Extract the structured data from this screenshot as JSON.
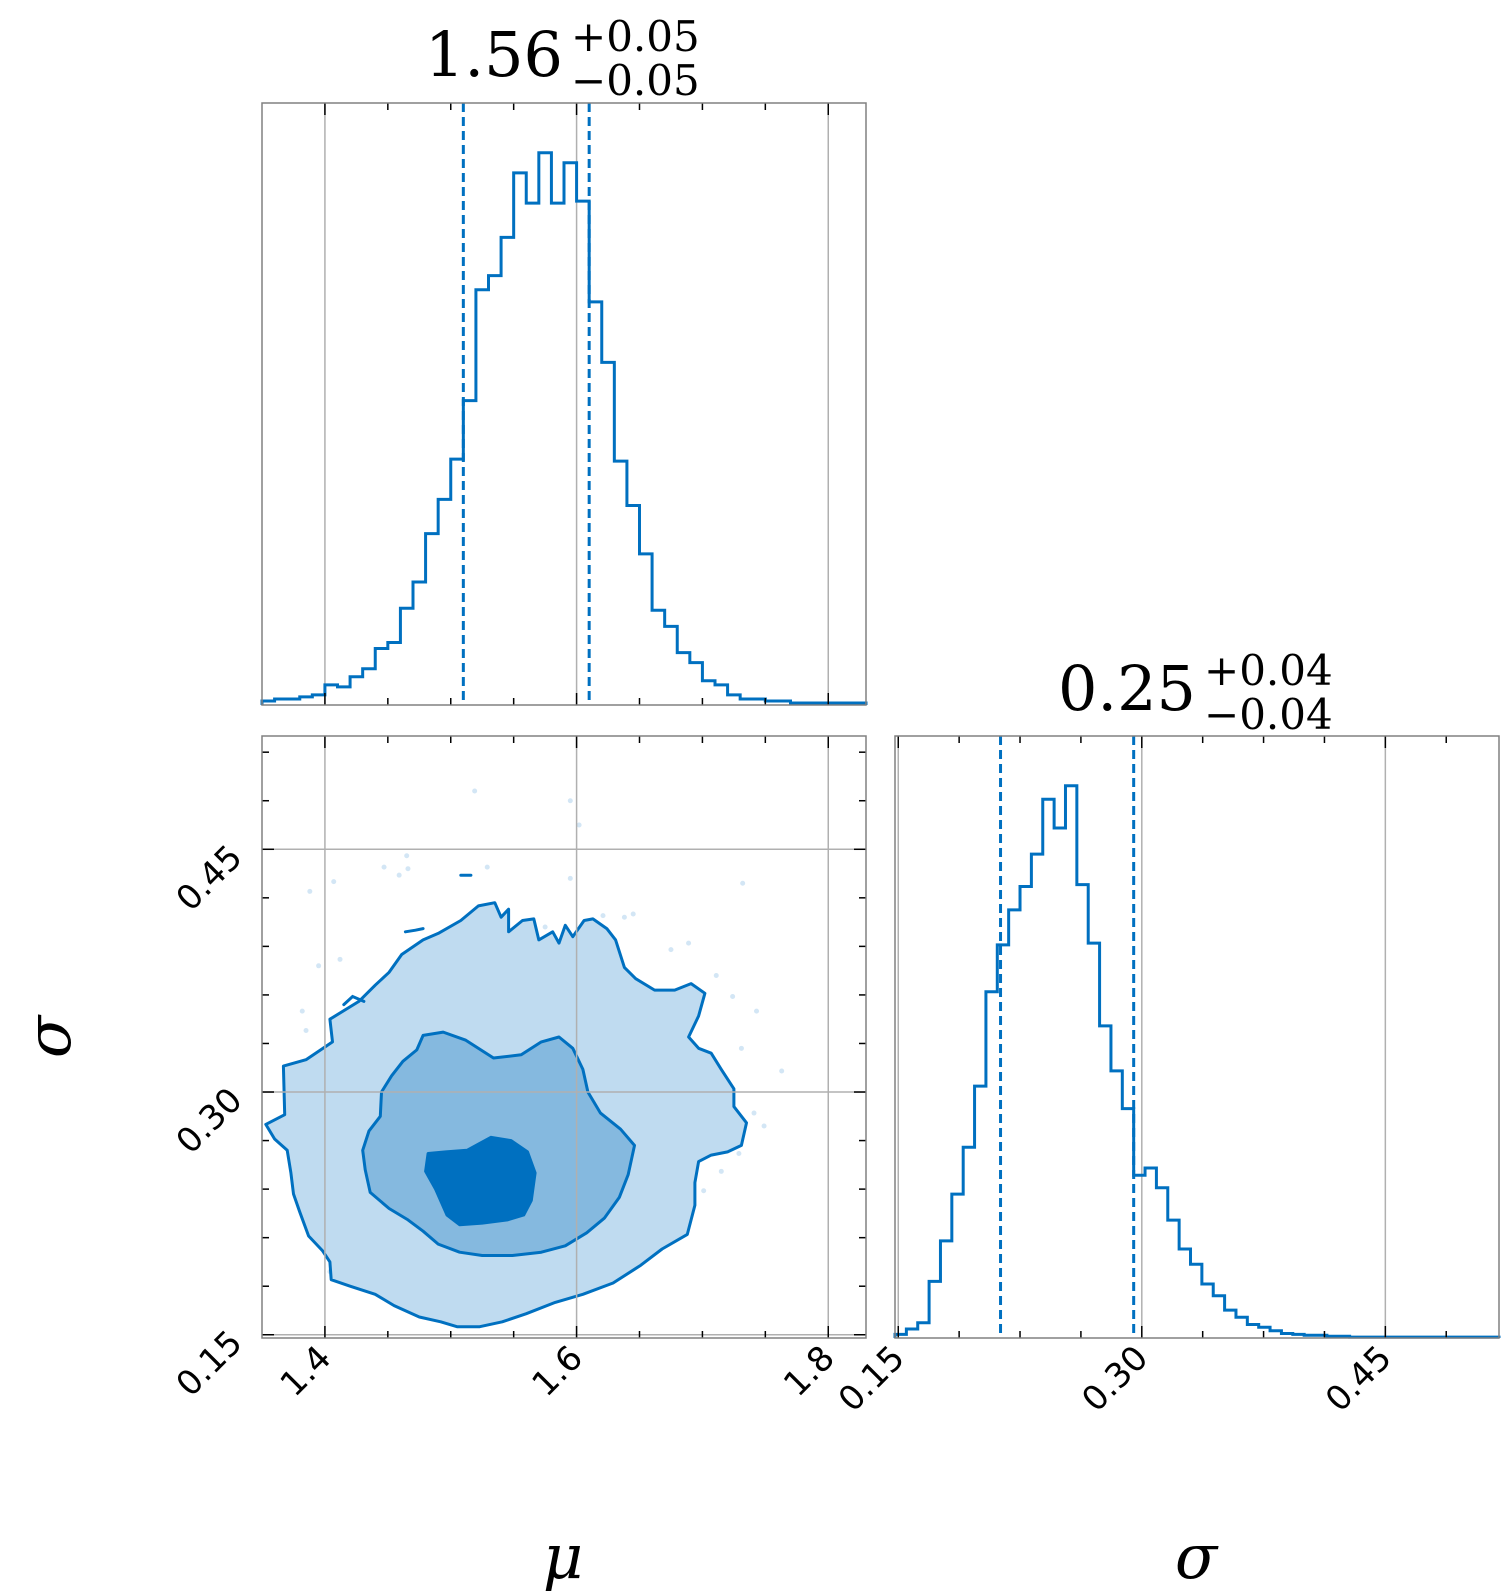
{
  "chart_data": [
    {
      "type": "histogram",
      "panel": "mu-marginal",
      "parameter": "μ",
      "title": {
        "value": "1.56",
        "plus": "+0.05",
        "minus": "−0.05"
      },
      "xlim": [
        1.35,
        1.83
      ],
      "x_ticks": [
        1.4,
        1.6,
        1.8
      ],
      "quantile_lines": [
        1.51,
        1.61
      ],
      "bins": {
        "edges": [
          1.35,
          1.36,
          1.37,
          1.38,
          1.39,
          1.4,
          1.41,
          1.42,
          1.43,
          1.44,
          1.45,
          1.46,
          1.47,
          1.48,
          1.49,
          1.5,
          1.51,
          1.52,
          1.53,
          1.54,
          1.55,
          1.56,
          1.57,
          1.58,
          1.59,
          1.6,
          1.61,
          1.62,
          1.63,
          1.64,
          1.65,
          1.66,
          1.67,
          1.68,
          1.69,
          1.7,
          1.71,
          1.72,
          1.73,
          1.74,
          1.75,
          1.76,
          1.77,
          1.78,
          1.79,
          1.8,
          1.81,
          1.82,
          1.83
        ],
        "counts": [
          2,
          3,
          3,
          4,
          5,
          10,
          9,
          14,
          18,
          28,
          31,
          48,
          61,
          85,
          102,
          122,
          151,
          206,
          213,
          232,
          264,
          249,
          274,
          249,
          269,
          250,
          200,
          170,
          121,
          99,
          75,
          47,
          39,
          26,
          21,
          12,
          10,
          5,
          3,
          3,
          2,
          2,
          1,
          1,
          1,
          1,
          1,
          1
        ]
      }
    },
    {
      "type": "contour",
      "panel": "mu-sigma-2d",
      "xlabel": "μ",
      "ylabel": "σ",
      "xlim": [
        1.35,
        1.83
      ],
      "ylim": [
        0.148,
        0.52
      ],
      "x_ticks": [
        1.4,
        1.6,
        1.8
      ],
      "y_ticks": [
        0.15,
        0.3,
        0.45
      ],
      "y_tick_labels": [
        "0.15",
        "0.30",
        "0.45"
      ],
      "levels": [
        {
          "level": "outer",
          "fill": "#bfdbf0",
          "path": [
            [
              1.368,
              0.286
            ],
            [
              1.367,
              0.316
            ],
            [
              1.385,
              0.32
            ],
            [
              1.406,
              0.331
            ],
            [
              1.404,
              0.345
            ],
            [
              1.427,
              0.356
            ],
            [
              1.44,
              0.366
            ],
            [
              1.451,
              0.374
            ],
            [
              1.461,
              0.385
            ],
            [
              1.478,
              0.394
            ],
            [
              1.49,
              0.398
            ],
            [
              1.508,
              0.406
            ],
            [
              1.522,
              0.415
            ],
            [
              1.535,
              0.417
            ],
            [
              1.54,
              0.408
            ],
            [
              1.546,
              0.413
            ],
            [
              1.546,
              0.399
            ],
            [
              1.557,
              0.406
            ],
            [
              1.566,
              0.407
            ],
            [
              1.57,
              0.394
            ],
            [
              1.581,
              0.399
            ],
            [
              1.586,
              0.392
            ],
            [
              1.591,
              0.403
            ],
            [
              1.597,
              0.396
            ],
            [
              1.606,
              0.406
            ],
            [
              1.613,
              0.407
            ],
            [
              1.624,
              0.401
            ],
            [
              1.631,
              0.394
            ],
            [
              1.638,
              0.377
            ],
            [
              1.647,
              0.37
            ],
            [
              1.662,
              0.363
            ],
            [
              1.678,
              0.363
            ],
            [
              1.691,
              0.367
            ],
            [
              1.702,
              0.361
            ],
            [
              1.697,
              0.347
            ],
            [
              1.689,
              0.334
            ],
            [
              1.697,
              0.327
            ],
            [
              1.707,
              0.324
            ],
            [
              1.715,
              0.314
            ],
            [
              1.725,
              0.302
            ],
            [
              1.725,
              0.291
            ],
            [
              1.735,
              0.281
            ],
            [
              1.731,
              0.267
            ],
            [
              1.72,
              0.263
            ],
            [
              1.707,
              0.261
            ],
            [
              1.697,
              0.257
            ],
            [
              1.694,
              0.244
            ],
            [
              1.694,
              0.23
            ],
            [
              1.688,
              0.212
            ],
            [
              1.668,
              0.203
            ],
            [
              1.651,
              0.193
            ],
            [
              1.629,
              0.182
            ],
            [
              1.605,
              0.175
            ],
            [
              1.583,
              0.17
            ],
            [
              1.56,
              0.163
            ],
            [
              1.541,
              0.158
            ],
            [
              1.523,
              0.155
            ],
            [
              1.505,
              0.155
            ],
            [
              1.492,
              0.158
            ],
            [
              1.475,
              0.161
            ],
            [
              1.455,
              0.168
            ],
            [
              1.44,
              0.175
            ],
            [
              1.42,
              0.18
            ],
            [
              1.405,
              0.184
            ],
            [
              1.404,
              0.195
            ],
            [
              1.398,
              0.202
            ],
            [
              1.387,
              0.211
            ],
            [
              1.38,
              0.226
            ],
            [
              1.375,
              0.237
            ],
            [
              1.373,
              0.25
            ],
            [
              1.37,
              0.264
            ],
            [
              1.36,
              0.271
            ],
            [
              1.353,
              0.28
            ]
          ]
        },
        {
          "level": "middle",
          "fill": "#85b9df",
          "path": [
            [
              1.444,
              0.285
            ],
            [
              1.445,
              0.3
            ],
            [
              1.453,
              0.31
            ],
            [
              1.462,
              0.319
            ],
            [
              1.473,
              0.326
            ],
            [
              1.478,
              0.335
            ],
            [
              1.494,
              0.337
            ],
            [
              1.512,
              0.332
            ],
            [
              1.534,
              0.321
            ],
            [
              1.556,
              0.323
            ],
            [
              1.572,
              0.331
            ],
            [
              1.586,
              0.334
            ],
            [
              1.597,
              0.327
            ],
            [
              1.605,
              0.314
            ],
            [
              1.609,
              0.3
            ],
            [
              1.619,
              0.287
            ],
            [
              1.635,
              0.277
            ],
            [
              1.646,
              0.267
            ],
            [
              1.641,
              0.249
            ],
            [
              1.634,
              0.235
            ],
            [
              1.622,
              0.222
            ],
            [
              1.608,
              0.213
            ],
            [
              1.591,
              0.205
            ],
            [
              1.572,
              0.201
            ],
            [
              1.549,
              0.199
            ],
            [
              1.525,
              0.199
            ],
            [
              1.507,
              0.201
            ],
            [
              1.49,
              0.206
            ],
            [
              1.478,
              0.214
            ],
            [
              1.466,
              0.221
            ],
            [
              1.451,
              0.228
            ],
            [
              1.436,
              0.238
            ],
            [
              1.432,
              0.252
            ],
            [
              1.43,
              0.264
            ],
            [
              1.435,
              0.276
            ]
          ]
        },
        {
          "level": "inner",
          "fill": "#0070c0",
          "path": [
            [
              1.496,
              0.263
            ],
            [
              1.513,
              0.264
            ],
            [
              1.532,
              0.272
            ],
            [
              1.548,
              0.27
            ],
            [
              1.561,
              0.263
            ],
            [
              1.567,
              0.25
            ],
            [
              1.564,
              0.233
            ],
            [
              1.558,
              0.224
            ],
            [
              1.545,
              0.221
            ],
            [
              1.525,
              0.219
            ],
            [
              1.507,
              0.218
            ],
            [
              1.497,
              0.224
            ],
            [
              1.488,
              0.24
            ],
            [
              1.48,
              0.251
            ],
            [
              1.482,
              0.262
            ]
          ]
        },
        {
          "level": "islands",
          "fill": "none",
          "paths": [
            [
              [
                1.415,
                0.354
              ],
              [
                1.422,
                0.359
              ],
              [
                1.431,
                0.356
              ]
            ],
            [
              [
                1.464,
                0.399
              ],
              [
                1.472,
                0.4
              ],
              [
                1.478,
                0.401
              ]
            ],
            [
              [
                1.508,
                0.434
              ],
              [
                1.516,
                0.434
              ]
            ]
          ]
        }
      ],
      "scatter_points": [
        [
          1.447,
          0.439
        ],
        [
          1.459,
          0.434
        ],
        [
          1.466,
          0.438
        ],
        [
          1.407,
          0.43
        ],
        [
          1.388,
          0.424
        ],
        [
          1.412,
          0.382
        ],
        [
          1.395,
          0.378
        ],
        [
          1.382,
          0.35
        ],
        [
          1.385,
          0.338
        ],
        [
          1.387,
          0.299
        ],
        [
          1.41,
          0.277
        ],
        [
          1.404,
          0.24
        ],
        [
          1.404,
          0.189
        ],
        [
          1.465,
          0.446
        ],
        [
          1.519,
          0.486
        ],
        [
          1.529,
          0.439
        ],
        [
          1.595,
          0.432
        ],
        [
          1.575,
          0.402
        ],
        [
          1.621,
          0.409
        ],
        [
          1.645,
          0.41
        ],
        [
          1.638,
          0.408
        ],
        [
          1.675,
          0.388
        ],
        [
          1.689,
          0.392
        ],
        [
          1.711,
          0.372
        ],
        [
          1.732,
          0.429
        ],
        [
          1.724,
          0.359
        ],
        [
          1.743,
          0.35
        ],
        [
          1.731,
          0.327
        ],
        [
          1.763,
          0.313
        ],
        [
          1.741,
          0.287
        ],
        [
          1.749,
          0.279
        ],
        [
          1.729,
          0.262
        ],
        [
          1.715,
          0.251
        ],
        [
          1.701,
          0.239
        ],
        [
          1.602,
          0.465
        ],
        [
          1.595,
          0.48
        ]
      ]
    },
    {
      "type": "histogram",
      "panel": "sigma-marginal",
      "parameter": "σ",
      "xlabel": "σ",
      "title": {
        "value": "0.25",
        "plus": "+0.04",
        "minus": "−0.04"
      },
      "xlim": [
        0.148,
        0.52
      ],
      "x_ticks": [
        0.15,
        0.3,
        0.45
      ],
      "x_tick_labels": [
        "0.15",
        "0.30",
        "0.45"
      ],
      "quantile_lines": [
        0.213,
        0.295
      ],
      "bins": {
        "edges": [
          0.148,
          0.155,
          0.162,
          0.169,
          0.176,
          0.183,
          0.19,
          0.197,
          0.204,
          0.211,
          0.218,
          0.225,
          0.232,
          0.239,
          0.246,
          0.253,
          0.26,
          0.267,
          0.274,
          0.281,
          0.288,
          0.295,
          0.302,
          0.309,
          0.316,
          0.323,
          0.33,
          0.337,
          0.344,
          0.351,
          0.358,
          0.365,
          0.372,
          0.379,
          0.386,
          0.393,
          0.4,
          0.407,
          0.414,
          0.421,
          0.428,
          0.435,
          0.442,
          0.449,
          0.456,
          0.463,
          0.47,
          0.52
        ],
        "counts": [
          4,
          10,
          17,
          63,
          108,
          160,
          212,
          280,
          385,
          437,
          476,
          502,
          538,
          599,
          567,
          614,
          504,
          439,
          347,
          297,
          255,
          181,
          189,
          167,
          131,
          99,
          82,
          60,
          47,
          31,
          23,
          15,
          12,
          8,
          5,
          4,
          3,
          3,
          2,
          2,
          1,
          1,
          1,
          1,
          1,
          1,
          1
        ]
      }
    }
  ],
  "colors": {
    "line": "#0070c0",
    "grid": "#b0b0b0",
    "frame": "#808080",
    "outer_fill": "#bfdbf0",
    "middle_fill": "#85b9df",
    "inner_fill": "#0070c0",
    "point": "#d3e6f5"
  }
}
